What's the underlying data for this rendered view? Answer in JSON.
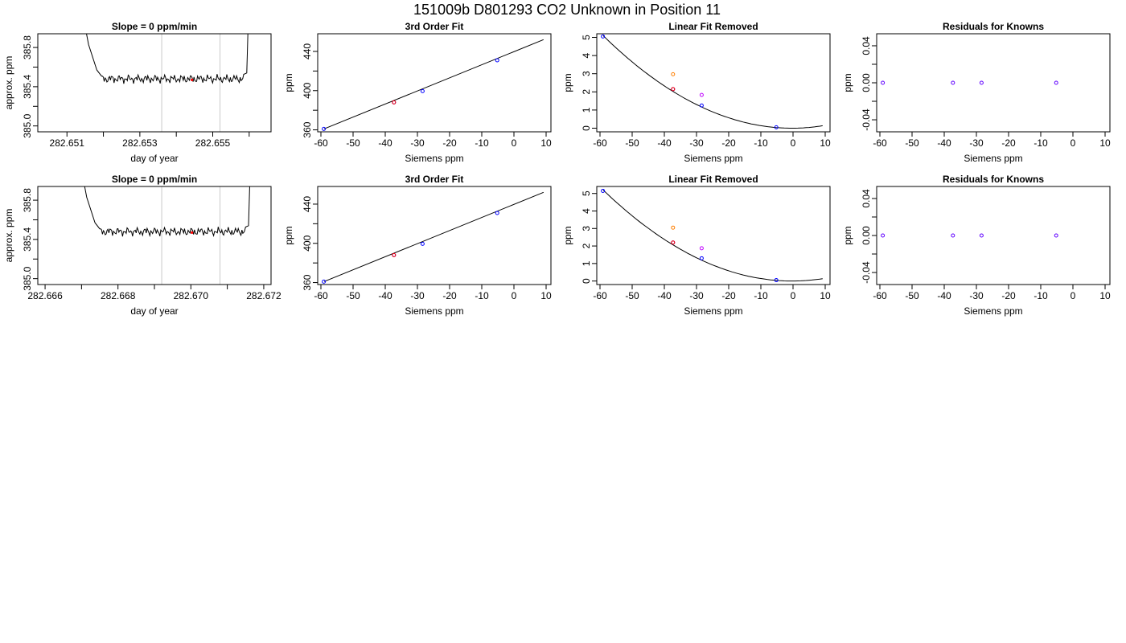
{
  "page": {
    "suptitle": "151009b     D801293   CO2 Unknown in Position  11",
    "text_color": "#000000",
    "background": "#ffffff"
  },
  "colors": {
    "trace": "#000000",
    "fit": "#000000",
    "box": "#000000",
    "marker_red": "#ff0000",
    "marker_blue": "#0000ff",
    "marker_orange": "#ff7f00",
    "marker_magenta": "#c000ff",
    "marker_purple": "#6000ff",
    "window_line": "#c8c8c8"
  },
  "chart_data": [
    {
      "type": "line",
      "title": "Slope =  0  ppm/min",
      "xlabel": "day of year",
      "ylabel": "approx. ppm",
      "xlim": [
        282.6502,
        282.6566
      ],
      "ylim": [
        384.94,
        385.94
      ],
      "x_ticks": [
        282.651,
        282.652,
        282.653,
        282.654,
        282.655,
        282.656
      ],
      "x_tick_labels": [
        "282.651",
        "",
        "282.653",
        "",
        "282.655",
        ""
      ],
      "y_ticks": [
        385.0,
        385.2,
        385.4,
        385.6,
        385.8
      ],
      "y_tick_labels": [
        "385.0",
        "",
        "385.4",
        "",
        "385.8"
      ],
      "window_lines": [
        282.6536,
        282.6552
      ],
      "trace": {
        "x_start": 282.6513,
        "x_end": 282.656,
        "y_from": 386.4,
        "flat_start": 282.65195,
        "y_level": 385.48,
        "flat_end": 282.65585,
        "y_to": 386.4
      },
      "mean_point": {
        "x": 282.65443,
        "y": 385.47
      },
      "grid": false
    },
    {
      "type": "scatter",
      "title": "3rd Order Fit",
      "xlabel": "Siemens ppm",
      "ylabel": "ppm",
      "xlim": [
        -61,
        11.5
      ],
      "ylim": [
        358,
        458
      ],
      "x_ticks": [
        -60,
        -50,
        -40,
        -30,
        -20,
        -10,
        0,
        10
      ],
      "y_ticks": [
        360,
        380,
        400,
        420,
        440
      ],
      "y_tick_labels": [
        "360",
        "",
        "400",
        "",
        "440"
      ],
      "points": [
        {
          "x": -59.1,
          "y": 361,
          "color": "blue"
        },
        {
          "x": -37.3,
          "y": 388,
          "color": "blue"
        },
        {
          "x": -37.3,
          "y": 388,
          "color": "red"
        },
        {
          "x": -28.4,
          "y": 399.5,
          "color": "blue"
        },
        {
          "x": -5.2,
          "y": 431,
          "color": "blue"
        }
      ],
      "fit_line": {
        "x": [
          -59,
          9.2
        ],
        "y": [
          361,
          452
        ]
      },
      "grid": false
    },
    {
      "type": "scatter",
      "title": "Linear Fit Removed",
      "xlabel": "Siemens ppm",
      "ylabel": "ppm",
      "xlim": [
        -61,
        11.5
      ],
      "ylim": [
        -0.2,
        5.2
      ],
      "x_ticks": [
        -60,
        -50,
        -40,
        -30,
        -20,
        -10,
        0,
        10
      ],
      "y_ticks": [
        0,
        1,
        2,
        3,
        4,
        5
      ],
      "points": [
        {
          "x": -59.1,
          "y": 5.05,
          "color": "blue"
        },
        {
          "x": -37.3,
          "y": 2.15,
          "color": "blue"
        },
        {
          "x": -37.3,
          "y": 2.15,
          "color": "red"
        },
        {
          "x": -37.3,
          "y": 2.97,
          "color": "orange"
        },
        {
          "x": -28.4,
          "y": 1.25,
          "color": "blue"
        },
        {
          "x": -28.4,
          "y": 1.83,
          "color": "magenta"
        },
        {
          "x": -5.2,
          "y": 0.05,
          "color": "blue"
        }
      ],
      "fit_curve": {
        "a": 0.00148,
        "b": 0.001,
        "c": 0.0,
        "x_range": [
          -59,
          9.2
        ]
      },
      "grid": false
    },
    {
      "type": "scatter",
      "title": "Residuals for Knowns",
      "xlabel": "Siemens ppm",
      "ylabel": "ppm",
      "xlim": [
        -61,
        11.5
      ],
      "ylim": [
        -0.053,
        0.053
      ],
      "x_ticks": [
        -60,
        -50,
        -40,
        -30,
        -20,
        -10,
        0,
        10
      ],
      "y_ticks": [
        -0.04,
        -0.02,
        0.0,
        0.02,
        0.04
      ],
      "y_tick_labels": [
        "-0.04",
        "",
        "0.00",
        "",
        "0.04"
      ],
      "points": [
        {
          "x": -59.1,
          "y": 0,
          "color": "purple"
        },
        {
          "x": -37.3,
          "y": 0,
          "color": "purple"
        },
        {
          "x": -28.4,
          "y": 0,
          "color": "purple"
        },
        {
          "x": -5.2,
          "y": 0,
          "color": "purple"
        }
      ],
      "grid": false
    },
    {
      "type": "line",
      "title": "Slope =  0  ppm/min",
      "xlabel": "day of year",
      "ylabel": "approx. ppm",
      "xlim": [
        282.6658,
        282.6722
      ],
      "ylim": [
        384.94,
        385.94
      ],
      "x_ticks": [
        282.666,
        282.667,
        282.668,
        282.669,
        282.67,
        282.671,
        282.672
      ],
      "x_tick_labels": [
        "282.666",
        "",
        "282.668",
        "",
        "282.670",
        "",
        "282.672"
      ],
      "y_ticks": [
        385.0,
        385.2,
        385.4,
        385.6,
        385.8
      ],
      "y_tick_labels": [
        "385.0",
        "",
        "385.4",
        "",
        "385.8"
      ],
      "window_lines": [
        282.6692,
        282.6708
      ],
      "trace": {
        "x_start": 282.66685,
        "x_end": 282.67165,
        "y_from": 386.4,
        "flat_start": 282.6675,
        "y_level": 385.48,
        "flat_end": 282.6715,
        "y_to": 386.4
      },
      "mean_point": {
        "x": 282.67003,
        "y": 385.47
      },
      "grid": false
    },
    {
      "type": "scatter",
      "title": "3rd Order Fit",
      "xlabel": "Siemens ppm",
      "ylabel": "ppm",
      "xlim": [
        -61,
        11.5
      ],
      "ylim": [
        358,
        458
      ],
      "x_ticks": [
        -60,
        -50,
        -40,
        -30,
        -20,
        -10,
        0,
        10
      ],
      "y_ticks": [
        360,
        380,
        400,
        420,
        440
      ],
      "y_tick_labels": [
        "360",
        "",
        "400",
        "",
        "440"
      ],
      "points": [
        {
          "x": -59.1,
          "y": 361,
          "color": "blue"
        },
        {
          "x": -37.3,
          "y": 388,
          "color": "blue"
        },
        {
          "x": -37.3,
          "y": 388,
          "color": "red"
        },
        {
          "x": -28.4,
          "y": 399.5,
          "color": "blue"
        },
        {
          "x": -5.2,
          "y": 431,
          "color": "blue"
        }
      ],
      "fit_line": {
        "x": [
          -59,
          9.2
        ],
        "y": [
          361,
          452
        ]
      },
      "grid": false
    },
    {
      "type": "scatter",
      "title": "Linear Fit Removed",
      "xlabel": "Siemens ppm",
      "ylabel": "ppm",
      "xlim": [
        -61,
        11.5
      ],
      "ylim": [
        -0.2,
        5.4
      ],
      "x_ticks": [
        -60,
        -50,
        -40,
        -30,
        -20,
        -10,
        0,
        10
      ],
      "y_ticks": [
        0,
        1,
        2,
        3,
        4,
        5
      ],
      "points": [
        {
          "x": -59.1,
          "y": 5.15,
          "color": "blue"
        },
        {
          "x": -37.3,
          "y": 2.2,
          "color": "blue"
        },
        {
          "x": -37.3,
          "y": 2.2,
          "color": "red"
        },
        {
          "x": -37.3,
          "y": 3.05,
          "color": "orange"
        },
        {
          "x": -28.4,
          "y": 1.3,
          "color": "blue"
        },
        {
          "x": -28.4,
          "y": 1.87,
          "color": "magenta"
        },
        {
          "x": -5.2,
          "y": 0.05,
          "color": "blue"
        }
      ],
      "fit_curve": {
        "a": 0.00151,
        "b": 0.001,
        "c": 0.0,
        "x_range": [
          -59,
          9.2
        ]
      },
      "grid": false
    },
    {
      "type": "scatter",
      "title": "Residuals for Knowns",
      "xlabel": "Siemens ppm",
      "ylabel": "ppm",
      "xlim": [
        -61,
        11.5
      ],
      "ylim": [
        -0.053,
        0.053
      ],
      "x_ticks": [
        -60,
        -50,
        -40,
        -30,
        -20,
        -10,
        0,
        10
      ],
      "y_ticks": [
        -0.04,
        -0.02,
        0.0,
        0.02,
        0.04
      ],
      "y_tick_labels": [
        "-0.04",
        "",
        "0.00",
        "",
        "0.04"
      ],
      "points": [
        {
          "x": -59.1,
          "y": 0,
          "color": "purple"
        },
        {
          "x": -37.3,
          "y": 0,
          "color": "purple"
        },
        {
          "x": -28.4,
          "y": 0,
          "color": "purple"
        },
        {
          "x": -5.2,
          "y": 0,
          "color": "purple"
        }
      ],
      "grid": false
    }
  ]
}
